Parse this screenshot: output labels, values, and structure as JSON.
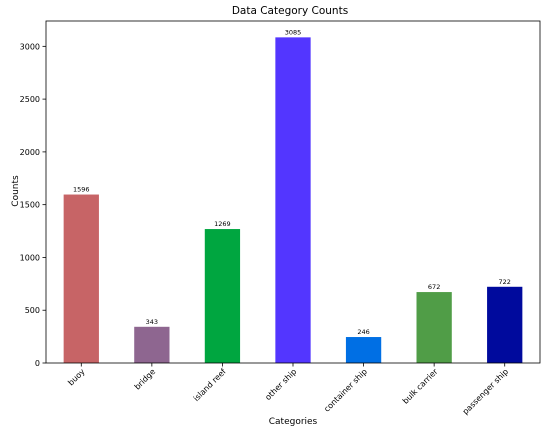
{
  "chart_data": {
    "type": "bar",
    "title": "Data Category Counts",
    "xlabel": "Categories",
    "ylabel": "Counts",
    "categories": [
      "buoy",
      "bridge",
      "island reef",
      "other ship",
      "container ship",
      "bulk carrier",
      "passenger ship"
    ],
    "values": [
      1596,
      343,
      1269,
      3085,
      246,
      672,
      722
    ],
    "value_labels": [
      "1596",
      "343",
      "1269",
      "3085",
      "246",
      "672",
      "722"
    ],
    "colors": [
      "#c76466",
      "#8e6690",
      "#00a640",
      "#5336ff",
      "#006fe4",
      "#509d47",
      "#000a9d"
    ],
    "ylim": [
      0,
      3240
    ],
    "yticks": [
      0,
      500,
      1000,
      1500,
      2000,
      2500,
      3000
    ],
    "ytick_labels": [
      "0",
      "500",
      "1000",
      "1500",
      "2000",
      "2500",
      "3000"
    ],
    "grid": false,
    "legend": "none"
  }
}
